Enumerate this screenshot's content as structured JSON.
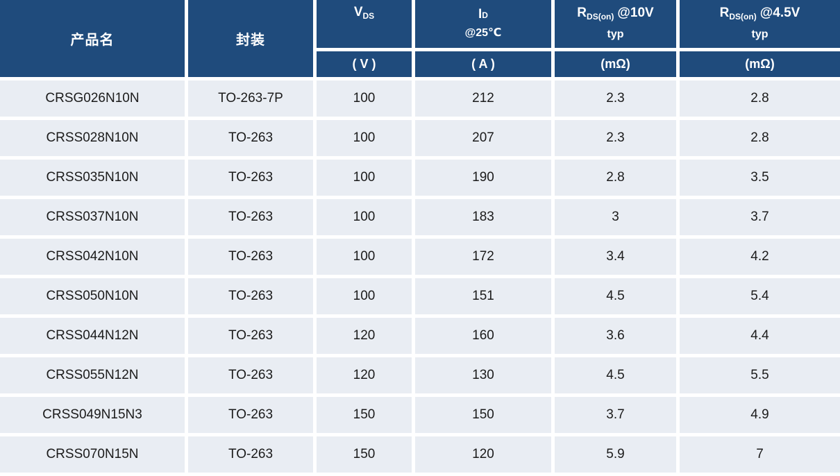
{
  "colors": {
    "header_bg": "#1F4B7C",
    "header_text": "#FFFFFF",
    "row_bg": "#E9EDF3",
    "body_text": "#1B1B1B",
    "divider": "#FFFFFF"
  },
  "header": {
    "product_label": "产品名",
    "package_label": "封装",
    "vds": {
      "symbol_main": "V",
      "symbol_sub": "DS",
      "unit": "( V )"
    },
    "id": {
      "symbol_main": "I",
      "symbol_sub": "D",
      "condition": "@25℃",
      "unit": "( A )"
    },
    "rds10": {
      "symbol_main": "R",
      "symbol_sub": "DS(on)",
      "condition": "@10V",
      "qualifier": "typ",
      "unit": "(mΩ)"
    },
    "rds45": {
      "symbol_main": "R",
      "symbol_sub": "DS(on)",
      "condition": "@4.5V",
      "qualifier": "typ",
      "unit": "(mΩ)"
    }
  },
  "rows": [
    {
      "product": "CRSG026N10N",
      "package": "TO-263-7P",
      "vds_v": "100",
      "id_a": "212",
      "rds_10v_mohm": "2.3",
      "rds_4v5_mohm": "2.8"
    },
    {
      "product": "CRSS028N10N",
      "package": "TO-263",
      "vds_v": "100",
      "id_a": "207",
      "rds_10v_mohm": "2.3",
      "rds_4v5_mohm": "2.8"
    },
    {
      "product": "CRSS035N10N",
      "package": "TO-263",
      "vds_v": "100",
      "id_a": "190",
      "rds_10v_mohm": "2.8",
      "rds_4v5_mohm": "3.5"
    },
    {
      "product": "CRSS037N10N",
      "package": "TO-263",
      "vds_v": "100",
      "id_a": "183",
      "rds_10v_mohm": "3",
      "rds_4v5_mohm": "3.7"
    },
    {
      "product": "CRSS042N10N",
      "package": "TO-263",
      "vds_v": "100",
      "id_a": "172",
      "rds_10v_mohm": "3.4",
      "rds_4v5_mohm": "4.2"
    },
    {
      "product": "CRSS050N10N",
      "package": "TO-263",
      "vds_v": "100",
      "id_a": "151",
      "rds_10v_mohm": "4.5",
      "rds_4v5_mohm": "5.4"
    },
    {
      "product": "CRSS044N12N",
      "package": "TO-263",
      "vds_v": "120",
      "id_a": "160",
      "rds_10v_mohm": "3.6",
      "rds_4v5_mohm": "4.4"
    },
    {
      "product": "CRSS055N12N",
      "package": "TO-263",
      "vds_v": "120",
      "id_a": "130",
      "rds_10v_mohm": "4.5",
      "rds_4v5_mohm": "5.5"
    },
    {
      "product": "CRSS049N15N3",
      "package": "TO-263",
      "vds_v": "150",
      "id_a": "150",
      "rds_10v_mohm": "3.7",
      "rds_4v5_mohm": "4.9"
    },
    {
      "product": "CRSS070N15N",
      "package": "TO-263",
      "vds_v": "150",
      "id_a": "120",
      "rds_10v_mohm": "5.9",
      "rds_4v5_mohm": "7"
    }
  ]
}
